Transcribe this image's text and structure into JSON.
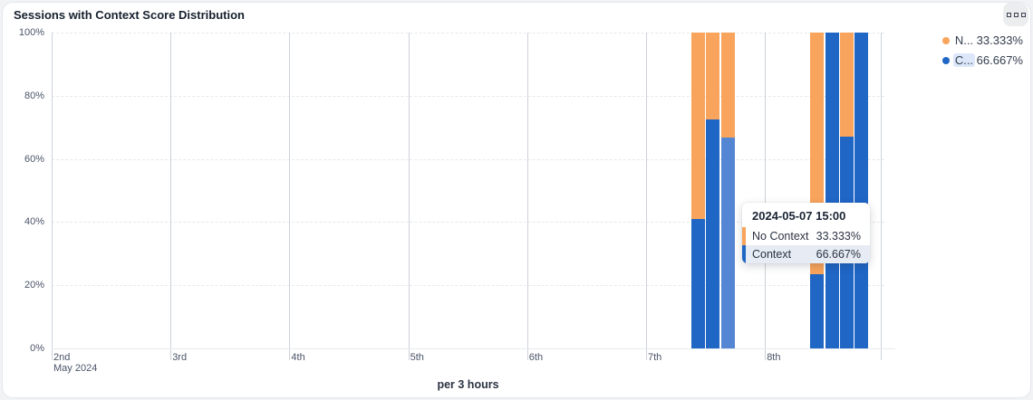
{
  "card": {
    "title": "Sessions with Context Score Distribution",
    "menu_button": "more-options"
  },
  "legend": {
    "items": [
      {
        "label": "N...",
        "value": "33.333%",
        "color": "#F9A45C",
        "highlight": false
      },
      {
        "label": "C...",
        "value": "66.667%",
        "color": "#2066C5",
        "highlight": true
      }
    ]
  },
  "tooltip": {
    "title": "2024-05-07 15:00",
    "rows": [
      {
        "label": "No Context",
        "value": "33.333%",
        "color": "#F9A45C",
        "highlight": false
      },
      {
        "label": "Context",
        "value": "66.667%",
        "color": "#2066C5",
        "highlight": true
      }
    ]
  },
  "chart_data": {
    "type": "bar",
    "stacked": true,
    "title": "Sessions with Context Score Distribution",
    "xlabel": "per 3 hours",
    "ylabel": "",
    "ylim": [
      0,
      100
    ],
    "grid": true,
    "legend_position": "top-right",
    "y_ticks": [
      {
        "pct": 0,
        "label": "0%"
      },
      {
        "pct": 20,
        "label": "20%"
      },
      {
        "pct": 40,
        "label": "40%"
      },
      {
        "pct": 60,
        "label": "60%"
      },
      {
        "pct": 80,
        "label": "80%"
      },
      {
        "pct": 100,
        "label": "100%"
      }
    ],
    "x_ticks": [
      {
        "day": 0,
        "label": "2nd",
        "sub": "May 2024"
      },
      {
        "day": 1,
        "label": "3rd",
        "sub": ""
      },
      {
        "day": 2,
        "label": "4th",
        "sub": ""
      },
      {
        "day": 3,
        "label": "5th",
        "sub": ""
      },
      {
        "day": 4,
        "label": "6th",
        "sub": ""
      },
      {
        "day": 5,
        "label": "7th",
        "sub": ""
      },
      {
        "day": 6,
        "label": "8th",
        "sub": ""
      },
      {
        "day": 6.977,
        "label": "",
        "sub": ""
      }
    ],
    "series": [
      {
        "name": "Context"
      },
      {
        "name": "No Context"
      }
    ],
    "colors": {
      "context": "#2066C5",
      "no_context": "#F9A45C",
      "context_highlight": "#5586D4"
    },
    "bars": [
      {
        "time": "2024-05-07 09:00",
        "day": 5,
        "hour": 9,
        "context": 41.0,
        "no_context": 59.0,
        "highlighted": false
      },
      {
        "time": "2024-05-07 12:00",
        "day": 5,
        "hour": 12,
        "context": 72.5,
        "no_context": 27.5,
        "highlighted": false
      },
      {
        "time": "2024-05-07 15:00",
        "day": 5,
        "hour": 15,
        "context": 66.667,
        "no_context": 33.333,
        "highlighted": true
      },
      {
        "time": "2024-05-08 09:00",
        "day": 6,
        "hour": 9,
        "context": 23.4,
        "no_context": 76.6,
        "highlighted": false
      },
      {
        "time": "2024-05-08 12:00",
        "day": 6,
        "hour": 12,
        "context": 100,
        "no_context": 0,
        "highlighted": false
      },
      {
        "time": "2024-05-08 15:00",
        "day": 6,
        "hour": 15,
        "context": 67.0,
        "no_context": 33.0,
        "highlighted": false
      },
      {
        "time": "2024-05-08 18:00",
        "day": 6,
        "hour": 18,
        "context": 100,
        "no_context": 0,
        "highlighted": false
      }
    ]
  }
}
